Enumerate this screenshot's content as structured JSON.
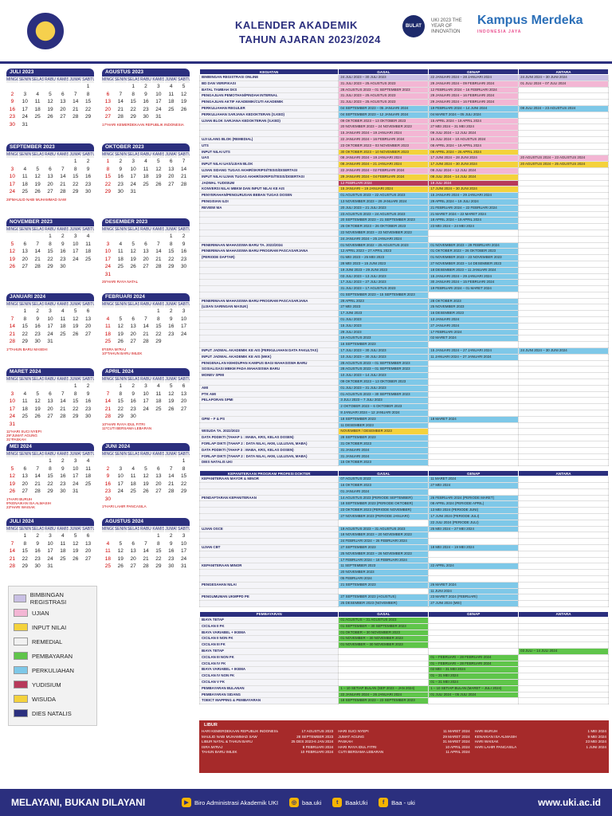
{
  "header": {
    "title1": "KALENDER AKADEMIK",
    "title2": "TAHUN AJARAN 2023/2024",
    "logo_bulat": "BULAT",
    "logo_inov": "UKI 2023 THE YEAR OF INNOVATION",
    "logo_km": "Kampus Merdeka",
    "logo_km_sub": "INDONESIA JAYA"
  },
  "days": [
    "MINGGU",
    "SENIN",
    "SELASA",
    "RABU",
    "KAMIS",
    "JUMAT",
    "SABTU"
  ],
  "calendars": [
    {
      "title": "JULI 2023",
      "start": 6,
      "n": 31,
      "note": ""
    },
    {
      "title": "AGUSTUS 2023",
      "start": 2,
      "n": 31,
      "note": "17*HARI KEMERDEKAAN REPUBLIK INDONESIA"
    },
    {
      "title": "SEPTEMBER 2023",
      "start": 5,
      "n": 30,
      "note": "28*MAULID NABI MUHAMMAD SAW"
    },
    {
      "title": "OKTOBER 2023",
      "start": 0,
      "n": 31,
      "note": ""
    },
    {
      "title": "NOVEMBER 2023",
      "start": 3,
      "n": 30,
      "note": ""
    },
    {
      "title": "DESEMBER 2023",
      "start": 5,
      "n": 31,
      "note": "25*HARI RAYA NATAL"
    },
    {
      "title": "JANUARI 2024",
      "start": 1,
      "n": 31,
      "note": "1*TAHUN BARU MASEHI"
    },
    {
      "title": "FEBRUARI 2024",
      "start": 4,
      "n": 29,
      "note": "8*ISRA MI'RAJ\n10*TAHUN BARU IMLEK"
    },
    {
      "title": "MARET 2024",
      "start": 5,
      "n": 31,
      "note": "11*HARI SUCI NYEPI\n29*JUMAT AGUNG\n31*PASKAH"
    },
    {
      "title": "APRIL 2024",
      "start": 1,
      "n": 30,
      "note": "10*HARI RAYA IDUL FITRI\n11*CUTI BERSAMA LEBARAN"
    },
    {
      "title": "MEI 2024",
      "start": 3,
      "n": 31,
      "note": "1*HARI BURUH\n9*KENAIKAN ISA ALMASIH\n23*HARI WAISAK"
    },
    {
      "title": "JUNI 2024",
      "start": 6,
      "n": 30,
      "note": "1*HARI LAHIR PANCASILA"
    },
    {
      "title": "JULI 2024",
      "start": 1,
      "n": 31,
      "note": ""
    },
    {
      "title": "AGUSTUS 2024",
      "start": 4,
      "n": 31,
      "note": ""
    }
  ],
  "table1": {
    "headers": [
      "KEGIATAN",
      "GASAL",
      "GENAP",
      "ANTARA"
    ],
    "rows": [
      [
        "BIMBINGAN REGISTRASI ONLINE",
        "24 JULI 2023 – 30 JULI 2023",
        "22 JANUARI 2024 – 28 JANUARI 2024",
        "24 JUNI 2024 – 30 JUNI 2024"
      ],
      [
        "BD DAN VERIFIKASI",
        "31 JULI 2023 – 25 AGUSTUS 2023",
        "29 JANUARI 2024 – 09 FEBRUARI 2024",
        "01 JULI 2024 – 07 JULI 2024"
      ],
      [
        "BATAL TAMBAH SKS",
        "28 AGUSTUS 2023 – 01 SEPTEMBER 2023",
        "12 FEBRUARI 2024 – 16 FEBRUARI 2024",
        ""
      ],
      [
        "PENGAJUAN PEMOTHAN/PINDAH INTERNAL",
        "31 JULI 2023 – 25 AGUSTUS 2023",
        "29 JANUARI 2024 – 16 FEBRUARI 2024",
        ""
      ],
      [
        "PENGAJUAN AKTIF AKADEMIK/CUTI AKADEMIK",
        "31 JULI 2023 – 25 AGUSTUS 2023",
        "29 JANUARI 2024 – 16 FEBRUARI 2024",
        ""
      ],
      [
        "PERKULIAHAN REGULER",
        "04 SEPTEMBER 2023 – 05 JANUARI 2024",
        "19 FEBRUARI 2024 – 14 JUNI 2024",
        "08 JULI 2024 – 23 AGUSTUS 2024"
      ],
      [
        "PERKULIAHAN SARJANA KEDOKTERAN (S.KED)",
        "04 SEPTEMBER 2023 – 12 JANUARI 2024",
        "04 MARET 2024 – 05 JULI 2024",
        ""
      ],
      [
        "UJIAN BLOK SARJANA KEDOKTERAN (S.KED)",
        "09 OKTOBER 2023 – 13 OKTOBER 2023",
        "15 APRIL 2024 – 19 APRIL 2024",
        ""
      ],
      [
        "",
        "20 NOVEMBER 2023 – 24 NOVEMBER 2023",
        "27 MEI 2024 – 31 MEI 2024",
        ""
      ],
      [
        "",
        "15 JANUARI 2024 – 19 JANUARI 2024",
        "09 JULI 2024 – 12 JULI 2024",
        ""
      ],
      [
        "UJI ULANG BLOK (REMEDIAL)",
        "22 JANUARI 2024 – 16 FEBRUARI 2024",
        "15 JULI 2024 – 10 AGUSTUS 2024",
        ""
      ],
      [
        "UTS",
        "23 OKTOBER 2023 – 03 NOVEMBER 2023",
        "08 APRIL 2024 – 19 APRIL 2024",
        ""
      ],
      [
        "INPUT NILAI UTS",
        "30 OKTOBER 2023 – 10 NOVEMBER 2023",
        "08 APRIL 2024 – 26 APRIL 2024",
        ""
      ],
      [
        "UAS",
        "08 JANUARI 2024 – 19 JANUARI 2024",
        "17 JUNI 2024 – 28 JUNI 2024",
        "20 AGUSTUS 2024 – 23 AGUSTUS 2024"
      ],
      [
        "INPUT NILAI UAS/UJIAN BLOK",
        "08 JANUARI 2024 – 21 JANUARI 2024",
        "17 JUNI 2024 – 30 JUNI 2024",
        "20 AGUSTUS 2024 – 25 AGUSTUS 2024"
      ],
      [
        "UJIAN SIDANG TUGAS AKHIR/SKRIPSI/TESIS/DISERTASI",
        "22 JANUARI 2024 – 02 FEBRUARI 2024",
        "08 JULI 2024 – 12 JULI 2024",
        ""
      ],
      [
        "INPUT NILAI UJIAN TUGAS AKHIR/SKRIPSI/TESIS/DISERTASI",
        "29 JANUARI 2024 – 04 FEBRUARI 2024",
        "08 JULI 2024 – 14 JULI 2024",
        ""
      ],
      [
        "JADWAL YUDISIUM",
        "12 FEBRUARI 2024",
        "19 JULI 2024",
        ""
      ],
      [
        "KONVERSI NILAI MBKM DAN INPUT NILAI KE AIS",
        "15 JANUARI – 19 JANUARI 2024",
        "17 JUNI 2024 – 30 JUNI 2024",
        ""
      ],
      [
        "PENYERAHAN/PENGURUSAN BEBAN TUGAS DOSEN",
        "01 AGUSTUS 2023 – 22 AGUSTUS 2023",
        "15 JANUARI 2024 – 29 JANUARI 2024",
        ""
      ],
      [
        "PENGISIAN ILDI",
        "13 NOVEMBER 2023 – 29 JANUARI 2024",
        "29 APRIL 2024 – 19 JULI 2024",
        ""
      ],
      [
        "REVIEW MA",
        "20 JULI 2023 – 21 JULI 2023",
        "21 FEBRUARI 2024 – 22 FEBRUARI 2024",
        ""
      ],
      [
        "",
        "23 AGUSTUS 2023 – 24 AGUSTUS 2023",
        "21 MARET 2024 – 22 MARET 2024",
        ""
      ],
      [
        "",
        "20 SEPTEMBER 2023 – 21 SEPTEMBER 2023",
        "18 APRIL 2024 – 19 APRIL 2024",
        ""
      ],
      [
        "",
        "25 OKTOBER 2023 – 26 OKTOBER 2023",
        "23 MEI 2024 – 24 MEI 2024",
        ""
      ],
      [
        "",
        "22 NOVEMBER 2023 – 23 NOVEMBER 2023",
        "",
        ""
      ],
      [
        "",
        "24 JANUARI 2024 – 25 JANUARI 2024",
        "",
        ""
      ],
      [
        "PENERIMAAN MAHASISWA BARU TA. 2023/2024",
        "01 NOVEMBER 2022 – 25 AGUSTUS 2023",
        "01 NOVEMBER 2023 – 29 FEBRUARI 2024",
        ""
      ],
      [
        "PENERIMAAN MAHASISWA BARU PROGRAM PASCASARJANA",
        "12 APRIL 2023 – 27 APRIL 2023",
        "01 OKTOBER 2023 – 26 OKTOBER 2023",
        ""
      ],
      [
        "(PERIODE DAFTAR)",
        "01 MEI 2023 – 25 MEI 2023",
        "01 NOVEMBER 2023 – 23 NOVEMBER 2023",
        ""
      ],
      [
        "",
        "28 MEI 2023 – 15 JUNI 2023",
        "27 NOVEMBER 2023 – 14 DESEMBER 2023",
        ""
      ],
      [
        "",
        "19 JUNI 2023 – 29 JUNI 2023",
        "18 DESEMBER 2023 – 11 JANUARI 2024",
        ""
      ],
      [
        "",
        "03 JULI 2023 – 13 JULI 2023",
        "15 JANUARI 2024 – 29 JANUARI 2024",
        ""
      ],
      [
        "",
        "17 JULI 2023 – 27 JULI 2023",
        "30 JANUARI 2024 – 15 FEBRUARI 2024",
        ""
      ],
      [
        "",
        "31 JULI 2023 – 17 AGUSTUS 2023",
        "19 FEBRUARI 2024 – 01 MARET 2024",
        ""
      ],
      [
        "",
        "01 SEPTEMBER 2023 – 15 SEPTEMBER 2023",
        "",
        ""
      ],
      [
        "PENERIMAAN MAHASISWA BARU PROGRAM PASCASARJANA",
        "29 APRIL 2023",
        "28 OKTOBER 2023",
        ""
      ],
      [
        "(UJIAN SARINGAN MASUK)",
        "27 MEI 2023",
        "25 NOVEMBER 2023",
        ""
      ],
      [
        "",
        "17 JUNI 2023",
        "16 DESEMBER 2023",
        ""
      ],
      [
        "",
        "01 JULI 2023",
        "13 JANUARI 2024",
        ""
      ],
      [
        "",
        "15 JULI 2023",
        "27 JANUARI 2024",
        ""
      ],
      [
        "",
        "29 JULI 2023",
        "17 FEBRUARI 2024",
        ""
      ],
      [
        "",
        "19 AGUSTUS 2023",
        "02 MARET 2024",
        ""
      ],
      [
        "",
        "16 SEPTEMBER 2023",
        "",
        ""
      ],
      [
        "INPUT JADWAL AKADEMIK KE AIS (PERKULIAHAN DATA FAKULTAS)",
        "17 JULI 2023 – 30 JULI 2023",
        "15 JANUARI 2024 – 27 JANUARI 2024",
        "24 JUNI 2024 – 30 JUNI 2024"
      ],
      [
        "INPUT JADWAL AKADEMIK KE AIS (MKK)",
        "10 JULI 2023 – 30 JULI 2023",
        "11 JANUARI 2024 – 27 JANUARI 2024",
        ""
      ],
      [
        "PENGENALAN KEHIDUPAN KAMPUS BAGI MAHASISWA BARU",
        "28 AGUSTUS 2023 – 01 SEPTEMBER 2023",
        "",
        ""
      ],
      [
        "SOSIALISASI MBKM PADA MAHASISWA BARU",
        "28 AGUSTUS 2023 – 01 SEPTEMBER 2023",
        "",
        ""
      ],
      [
        "MONEV SPMI",
        "10 JULI 2023 – 14 JULI 2023",
        "",
        ""
      ],
      [
        "",
        "09 OKTOBER 2023 – 13 OKTOBER 2023",
        "",
        ""
      ],
      [
        "AMI",
        "01 JULI 2023 – 31 JULI 2023",
        "",
        ""
      ],
      [
        "PTK AMI",
        "01 AGUSTUS 2023 – 30 SEPTEMBER 2023",
        "",
        ""
      ],
      [
        "PELAPORAN SPMI",
        "3 JULI 2023 – 7 JULI 2023",
        "",
        ""
      ],
      [
        "",
        "2 OKTOBER 2023 – 6 OKTOBER 2023",
        "",
        ""
      ],
      [
        "",
        "8 JANUARI 2024 – 12 JANUARI 2024",
        "",
        ""
      ],
      [
        "GPM – F & PS",
        "18 SEPTEMBER 2023",
        "18 MARET 2024",
        ""
      ],
      [
        "",
        "11 DESEMBER 2023",
        "",
        ""
      ],
      [
        "WISUDA TA. 2022/2023",
        "NOVEMBER / DESEMBER 2023",
        "",
        ""
      ],
      [
        "DATA PDDIKTI (TAHAP 1 : MABA, KRS, KELAS DOSEN)",
        "28 SEPTEMBER 2023",
        "",
        ""
      ],
      [
        "FORLAP DIKTI (TAHAP 2 : DATA NILAI, AKM, LULUSAN, MABA)",
        "31 OKTOBER 2023",
        "",
        ""
      ],
      [
        "DATA PDDIKTI (TAHAP 3 : MABA, KRS, KELAS DOSEN)",
        "31 JANUARI 2024",
        "",
        ""
      ],
      [
        "FORLAP DIKTI (TAHAP 2 : DATA NILAI, AKM, LULUSAN, MABA)",
        "31 JANUARI 2024",
        "",
        ""
      ],
      [
        "DIES NATALIS UKI",
        "15 OKTOBER 2023",
        "",
        ""
      ]
    ],
    "colors": [
      "#c9c0e4",
      "#f3b6d4",
      "#f3b6d4",
      "#f3b6d4",
      "#f3b6d4",
      "#7ec8e8",
      "#7ec8e8",
      "#f3b6d4",
      "#f3b6d4",
      "#f3b6d4",
      "#f3b6d4",
      "#f3b6d4",
      "#f4d23c",
      "#f3b6d4",
      "#f4d23c",
      "#f3b6d4",
      "#f4d23c",
      "#b7395a",
      "#f4d23c",
      "#7ec8e8",
      "#7ec8e8",
      "#7ec8e8",
      "#7ec8e8",
      "#7ec8e8",
      "#7ec8e8",
      "#7ec8e8",
      "#7ec8e8",
      "#7ec8e8",
      "#7ec8e8",
      "#7ec8e8",
      "#7ec8e8",
      "#7ec8e8",
      "#7ec8e8",
      "#7ec8e8",
      "#7ec8e8",
      "#7ec8e8",
      "#7ec8e8",
      "#7ec8e8",
      "#7ec8e8",
      "#7ec8e8",
      "#7ec8e8",
      "#7ec8e8",
      "#7ec8e8",
      "#7ec8e8",
      "#7ec8e8",
      "#7ec8e8",
      "#7ec8e8",
      "#7ec8e8",
      "#7ec8e8",
      "#7ec8e8",
      "#7ec8e8",
      "#7ec8e8",
      "#7ec8e8",
      "#7ec8e8",
      "#7ec8e8",
      "#7ec8e8",
      "#7ec8e8",
      "#f4d23c",
      "#7ec8e8",
      "#7ec8e8",
      "#7ec8e8",
      "#7ec8e8",
      "#7ec8e8"
    ]
  },
  "table2": {
    "headers": [
      "KEPANITERAAN PROGRAM PROFESI DOKTER",
      "GASAL",
      "GENAP",
      "ANTARA"
    ],
    "rows": [
      [
        "KEPANITERAAN MAYOR & MINOR",
        "07 AGUSTUS 2023",
        "11 MARET 2024",
        ""
      ],
      [
        "",
        "16 OKTOBER 2023",
        "27 MEI 2024",
        ""
      ],
      [
        "",
        "01 JANUARI 2024",
        "",
        ""
      ],
      [
        "PENDAFTARAN KEPANITERAAN",
        "14 AGUSTUS 2023 (PERIODE SEPTEMBER)",
        "26 FEBRUARI 2024 (PERIODE MARET)",
        ""
      ],
      [
        "",
        "18 SEPTEMBER 2023 (PERIODE OKTOBER)",
        "08 APRIL 2024 (PERIODE APRIL)",
        ""
      ],
      [
        "",
        "23 OKTOBER 2023 (PERIODE NOVEMBER)",
        "13 MEI 2024 (PERIODE JUNI)",
        ""
      ],
      [
        "",
        "27 NOVEMBER 2023 (PERIODE JANUARI)",
        "17 JUNI 2024 (PERIODE JULI)",
        ""
      ],
      [
        "",
        "",
        "22 JULI 2024 (PERIODE JULI)",
        ""
      ],
      [
        "UJIAN OSCE",
        "19 AGUSTUS 2023 – 31 AGUSTUS 2023",
        "25 MEI 2024 – 27 MEI 2024",
        ""
      ],
      [
        "",
        "18 NOVEMBER 2023 – 20 NOVEMBER 2023",
        "",
        ""
      ],
      [
        "",
        "24 FEBRUARI 2024 – 26 FEBRUARI 2024",
        "",
        ""
      ],
      [
        "UJIAN CBT",
        "27 SEPTEMBER 2023",
        "18 MEI 2024 – 19 MEI 2024",
        ""
      ],
      [
        "",
        "25 NOVEMBER 2023 – 26 NOVEMBER 2023",
        "",
        ""
      ],
      [
        "",
        "17 FEBRUARI 2024 – 18 FEBRUARI 2024",
        "",
        ""
      ],
      [
        "KEPANITERAAN MINOR",
        "11 SEPTEMBER 2023",
        "22 APRIL 2024",
        ""
      ],
      [
        "",
        "20 NOVEMBER 2023",
        "",
        ""
      ],
      [
        "",
        "05 FEBRUARI 2024",
        "",
        ""
      ],
      [
        "PENGESAHAN NILAI",
        "21 SEPTEMBER 2023",
        "26 MARET 2024",
        ""
      ],
      [
        "",
        "",
        "11 JUNI 2024",
        ""
      ],
      [
        "PENGUMUMAN UKMPPD PE",
        "27 SEPTEMBER 2023 (AGUSTUS)",
        "23 MARET 2024 (FEBRUARI)",
        ""
      ],
      [
        "",
        "25 DESEMBER 2023 (NOVEMBER)",
        "27 JUNI 2024 (MEI)",
        ""
      ]
    ]
  },
  "table3": {
    "headers": [
      "PEMBAYARAN",
      "GASAL",
      "GENAP",
      "ANTARA"
    ],
    "rows": [
      [
        "BIAYA TETAP",
        "01 AGUSTUS – 31 AGUSTUS 2023",
        "",
        ""
      ],
      [
        "CICILAN II FK",
        "01 SEPTEMBER – 30 SEPTEMBER 2023",
        "",
        ""
      ],
      [
        "BIAYA VARIABEL + IKEMA",
        "01 OKTOBER – 30 NOVEMBER 2023",
        "",
        ""
      ],
      [
        "CICILAN II NON FK",
        "01 NOVEMBER – 30 NOVEMBER 2023",
        "",
        ""
      ],
      [
        "CICILAN III FK",
        "01 NOVEMBER – 30 NOVEMBER 2023",
        "",
        ""
      ],
      [
        "BIAYA TETAP",
        "",
        "",
        "03 JULI – 14 JULI 2024"
      ],
      [
        "CICILAN III NON FK",
        "",
        "01 – FEBRUARI – 28 FEBRUARI 2024",
        ""
      ],
      [
        "CICILAN IV FK",
        "",
        "01 – FEBRUARI – 28 FEBRUARI 2024",
        ""
      ],
      [
        "BIAYA VARIABEL + IKEMA",
        "",
        "02 MEI – 31 MEI 2024",
        ""
      ],
      [
        "CICILAN IV NON FK",
        "",
        "01 – 31 MEI 2024",
        ""
      ],
      [
        "CICILAN V FK",
        "",
        "01 – 31 MEI 2024",
        ""
      ],
      [
        "PEMBAYARAN BULANAN",
        "1 – 10 SETIAP BULAN (SEP 2023 – JAN 2024)",
        "1 – 10 SETIAP BULAN (MARET – JULI 2024)",
        ""
      ],
      [
        "PEMBAYARAN SIDANG",
        "22 JANUARI 2024 – 26 JANUARI 2024",
        "01 JULI 2024 – 05 JULI 2024",
        ""
      ],
      [
        "TOEICT MAPPING & PEMBAYARAN",
        "18 SEPTEMBER 2023 – 23 SEPTEMBER 2023",
        "",
        ""
      ]
    ]
  },
  "legend": [
    {
      "label": "BIMBINGAN REGISTRASI",
      "color": "#c9c0e4"
    },
    {
      "label": "UJIAN",
      "color": "#f3b6d4"
    },
    {
      "label": "INPUT NILAI",
      "color": "#f4d23c"
    },
    {
      "label": "REMEDIAL",
      "color": "#f1f1f1"
    },
    {
      "label": "PEMBAYARAN",
      "color": "#5fc54a"
    },
    {
      "label": "PERKULIAHAN",
      "color": "#7ec8e8"
    },
    {
      "label": "YUDISIUM",
      "color": "#b7395a"
    },
    {
      "label": "WISUDA",
      "color": "#f4d23c"
    },
    {
      "label": "DIES NATALIS",
      "color": "#2b2f7e"
    }
  ],
  "libur": {
    "title": "LIBUR",
    "items": [
      [
        "HARI KEMERDEKAAN REPUBLIK INDONESIA",
        "17 AGUSTUS 2023"
      ],
      [
        "HARI SUCI NYEPI",
        "11 MARET 2024"
      ],
      [
        "HARI BURUH",
        "1 MEI 2024"
      ],
      [
        "MAULID NABI MUHAMMAD SAW",
        "28 SEPTEMBER 2023"
      ],
      [
        "JUMAT AGUNG",
        "29 MARET 2024"
      ],
      [
        "KENAIKAN ISA ALMASIH",
        "9 MEI 2024"
      ],
      [
        "LIBUR NATAL & TAHUN BARU",
        "25 DES 2023-6 JAN 2024"
      ],
      [
        "PASKAH",
        "31 MARET 2024"
      ],
      [
        "HARI WAISAK",
        "23 MEI 2024"
      ],
      [
        "ISRA MI'RAJ",
        "8 FEBRUARI 2024"
      ],
      [
        "HARI RAYA IDUL FITRI",
        "10 APRIL 2024"
      ],
      [
        "HARI LAHIR PANCASILA",
        "1 JUNI 2024"
      ],
      [
        "TAHUN BARU IMLEK",
        "10 FEBRUARI 2024"
      ],
      [
        "CUTI BERSAMA LEBARAN",
        "11 APRIL 2024"
      ],
      [
        "",
        ""
      ]
    ]
  },
  "footer": {
    "slogan": "MELAYANI, BUKAN DILAYANI",
    "yt": "Biro Administrasi Akademik UKI",
    "ig": "baa.uki",
    "tw": "BaakUki",
    "fb": "Baa - uki",
    "web": "www.uki.ac.id"
  }
}
